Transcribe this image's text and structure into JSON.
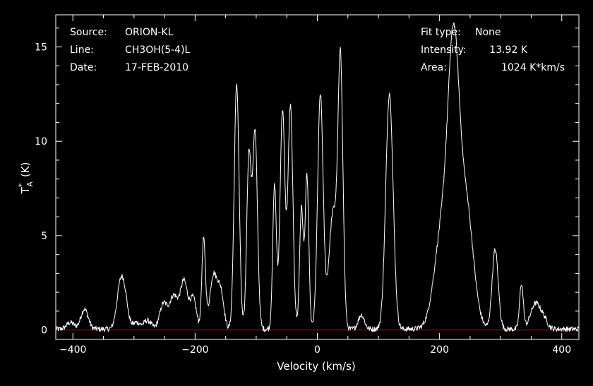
{
  "header_left": {
    "source_label": "Source:",
    "source_value": "ORION-KL",
    "line_label": "Line:",
    "line_value": "CH3OH(5-4)L",
    "date_label": "Date:",
    "date_value": "17-FEB-2010"
  },
  "header_right": {
    "fit_label": "Fit type:",
    "fit_value": "None",
    "intensity_label": "Intensity:",
    "intensity_value": "13.92 K",
    "area_label": "Area:",
    "area_value": "1024 K*km/s"
  },
  "colors": {
    "background": "#000000",
    "spectrum": "#ffffff",
    "baseline": "#cc0000",
    "frame": "#ffffff"
  },
  "chart_data": {
    "type": "line",
    "xlabel": "Velocity (km/s)",
    "ylabel_main": "T",
    "ylabel_sup": "*",
    "ylabel_sub": "A",
    "ylabel_unit": "(K)",
    "xlim": [
      -428,
      428
    ],
    "ylim": [
      -0.5,
      16.7
    ],
    "xticks": [
      -400,
      -200,
      0,
      200,
      400
    ],
    "yticks": [
      0,
      5,
      10,
      15
    ],
    "xtick_labels": [
      "−400",
      "−200",
      "0",
      "200",
      "400"
    ],
    "ytick_labels": [
      "0",
      "5",
      "10",
      "15"
    ],
    "baseline": 0,
    "grid": false,
    "continuum": 0.05,
    "peaks": [
      {
        "v": -404,
        "a": 0.35,
        "w": 6
      },
      {
        "v": -381,
        "a": 1.05,
        "w": 6
      },
      {
        "v": -322,
        "a": 2.4,
        "w": 6
      },
      {
        "v": -314,
        "a": 1.1,
        "w": 5
      },
      {
        "v": -296,
        "a": 0.35,
        "w": 6
      },
      {
        "v": -278,
        "a": 0.45,
        "w": 6
      },
      {
        "v": -252,
        "a": 1.3,
        "w": 6
      },
      {
        "v": -235,
        "a": 1.75,
        "w": 7
      },
      {
        "v": -218,
        "a": 2.5,
        "w": 6
      },
      {
        "v": -203,
        "a": 1.6,
        "w": 5
      },
      {
        "v": -186,
        "a": 4.7,
        "w": 3
      },
      {
        "v": -170,
        "a": 2.85,
        "w": 6
      },
      {
        "v": -158,
        "a": 1.9,
        "w": 5
      },
      {
        "v": -132,
        "a": 13.0,
        "w": 4
      },
      {
        "v": -112,
        "a": 9.1,
        "w": 3.5
      },
      {
        "v": -102,
        "a": 10.4,
        "w": 4
      },
      {
        "v": -70,
        "a": 7.6,
        "w": 3
      },
      {
        "v": -57,
        "a": 11.6,
        "w": 4
      },
      {
        "v": -44,
        "a": 11.8,
        "w": 4
      },
      {
        "v": -26,
        "a": 6.4,
        "w": 3
      },
      {
        "v": -17,
        "a": 8.1,
        "w": 3
      },
      {
        "v": 5,
        "a": 12.4,
        "w": 4.5
      },
      {
        "v": 26,
        "a": 6.2,
        "w": 7
      },
      {
        "v": 38,
        "a": 13.3,
        "w": 4
      },
      {
        "v": 72,
        "a": 0.75,
        "w": 5
      },
      {
        "v": 118,
        "a": 12.5,
        "w": 6
      },
      {
        "v": 205,
        "a": 5.4,
        "w": 13
      },
      {
        "v": 223,
        "a": 12.5,
        "w": 9
      },
      {
        "v": 243,
        "a": 6.6,
        "w": 12
      },
      {
        "v": 291,
        "a": 4.2,
        "w": 5
      },
      {
        "v": 334,
        "a": 2.4,
        "w": 3
      },
      {
        "v": 357,
        "a": 1.35,
        "w": 8
      },
      {
        "v": 371,
        "a": 0.45,
        "w": 6
      }
    ]
  }
}
